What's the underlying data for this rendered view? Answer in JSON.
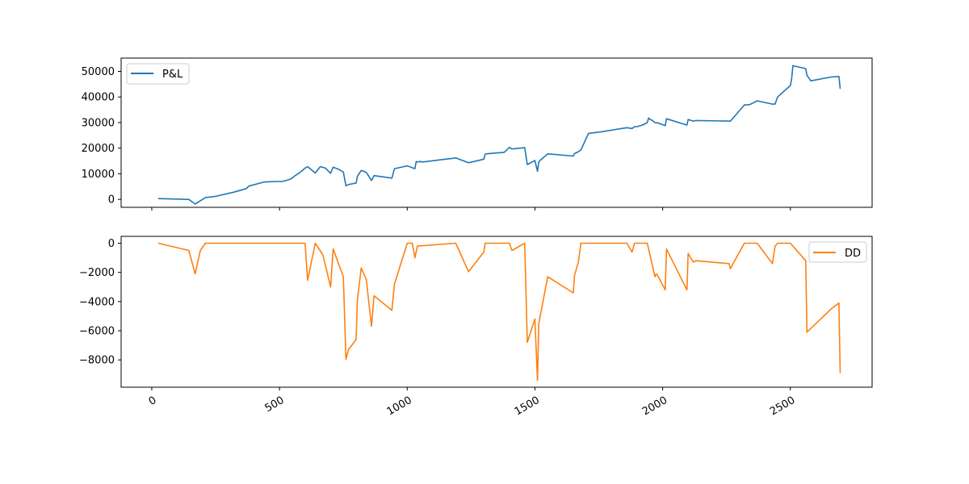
{
  "chart_data": [
    {
      "type": "line",
      "title": "",
      "xlabel": "",
      "ylabel": "",
      "xlim": [
        -120,
        2820
      ],
      "ylim": [
        -3100,
        55200
      ],
      "yticks": [
        0,
        10000,
        20000,
        30000,
        40000,
        50000
      ],
      "show_x_tick_labels": false,
      "grid": false,
      "legend": "upper left",
      "series": [
        {
          "name": "P&L",
          "color": "#1f77b4",
          "x": [
            25,
            145,
            170,
            210,
            250,
            320,
            370,
            380,
            440,
            490,
            510,
            530,
            545,
            560,
            580,
            600,
            610,
            640,
            660,
            680,
            700,
            710,
            730,
            750,
            760,
            770,
            800,
            805,
            820,
            840,
            860,
            870,
            940,
            950,
            1000,
            1030,
            1035,
            1040,
            1050,
            1060,
            1190,
            1240,
            1300,
            1305,
            1310,
            1380,
            1400,
            1410,
            1460,
            1470,
            1500,
            1510,
            1515,
            1520,
            1550,
            1650,
            1655,
            1670,
            1680,
            1700,
            1710,
            1760,
            1860,
            1880,
            1890,
            1900,
            1920,
            1940,
            1945,
            1950,
            1960,
            1970,
            1975,
            1980,
            2010,
            2015,
            2095,
            2100,
            2120,
            2130,
            2260,
            2265,
            2320,
            2340,
            2370,
            2430,
            2440,
            2450,
            2500,
            2505,
            2510,
            2560,
            2565,
            2580,
            2660,
            2690,
            2695
          ],
          "values": [
            300,
            0,
            -1800,
            700,
            1200,
            2800,
            4200,
            5200,
            6800,
            7000,
            7000,
            7500,
            8000,
            9200,
            10500,
            12200,
            12800,
            10300,
            12800,
            12200,
            10200,
            12600,
            11800,
            10700,
            5300,
            5800,
            6400,
            9000,
            11300,
            10500,
            7400,
            9300,
            8300,
            12000,
            13100,
            12000,
            14800,
            14600,
            14800,
            14600,
            16200,
            14300,
            15700,
            17600,
            17800,
            18400,
            20300,
            19700,
            20200,
            13600,
            15200,
            11000,
            14600,
            15200,
            17800,
            16900,
            17900,
            18600,
            19300,
            23700,
            25800,
            26400,
            28000,
            27700,
            28400,
            28400,
            29000,
            30000,
            31800,
            31300,
            30800,
            30000,
            29900,
            29900,
            28800,
            31500,
            29000,
            31200,
            30600,
            30800,
            30600,
            30500,
            36900,
            37000,
            38500,
            37200,
            37200,
            40000,
            44500,
            47200,
            52200,
            51100,
            48500,
            46300,
            47800,
            48000,
            43200
          ]
        }
      ]
    },
    {
      "type": "line",
      "title": "",
      "xlabel": "",
      "ylabel": "",
      "xlim": [
        -120,
        2820
      ],
      "ylim": [
        -9870,
        470
      ],
      "xticks": [
        0,
        500,
        1000,
        1500,
        2000,
        2500
      ],
      "yticks": [
        0,
        -2000,
        -4000,
        -6000,
        -8000
      ],
      "grid": false,
      "legend": "upper right",
      "series": [
        {
          "name": "DD",
          "color": "#ff7f0e",
          "x": [
            25,
            145,
            170,
            190,
            210,
            600,
            610,
            640,
            670,
            700,
            710,
            750,
            760,
            770,
            800,
            805,
            820,
            840,
            860,
            870,
            940,
            950,
            1000,
            1020,
            1030,
            1040,
            1190,
            1240,
            1300,
            1305,
            1400,
            1410,
            1460,
            1470,
            1500,
            1510,
            1515,
            1550,
            1650,
            1655,
            1670,
            1680,
            1860,
            1880,
            1890,
            1940,
            1970,
            1975,
            1980,
            2010,
            2015,
            2095,
            2100,
            2120,
            2130,
            2260,
            2265,
            2320,
            2370,
            2430,
            2440,
            2450,
            2500,
            2560,
            2565,
            2660,
            2690,
            2695
          ],
          "values": [
            0,
            -500,
            -2100,
            -500,
            0,
            0,
            -2550,
            0,
            -800,
            -3000,
            -400,
            -2300,
            -7950,
            -7300,
            -6600,
            -3900,
            -1700,
            -2500,
            -5700,
            -3600,
            -4600,
            -2800,
            0,
            0,
            -1000,
            -200,
            0,
            -1950,
            -600,
            0,
            0,
            -500,
            0,
            -6800,
            -5200,
            -9400,
            -5500,
            -2300,
            -3400,
            -2200,
            -1300,
            0,
            0,
            -600,
            0,
            0,
            -2300,
            -2100,
            -2200,
            -3200,
            -400,
            -3200,
            -700,
            -1300,
            -1200,
            -1400,
            -1750,
            0,
            0,
            -1400,
            -200,
            0,
            0,
            -1200,
            -6100,
            -4500,
            -4100,
            -8900
          ]
        }
      ]
    }
  ]
}
